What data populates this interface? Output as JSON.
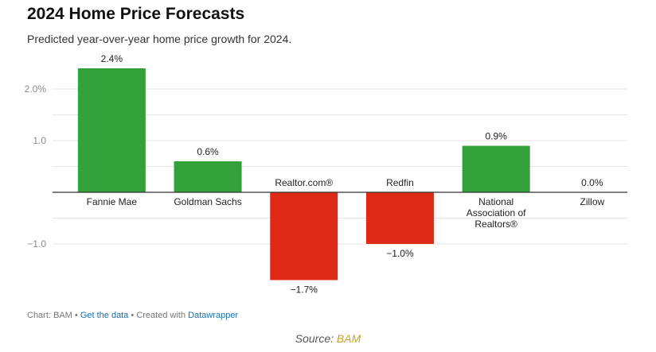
{
  "title": "2024 Home Price Forecasts",
  "subtitle": "Predicted year-over-year home price growth for 2024.",
  "chart_data": {
    "type": "bar",
    "categories": [
      "Fannie Mae",
      "Goldman Sachs",
      "Realtor.com®",
      "Redfin",
      "National Association of Realtors®",
      "Zillow"
    ],
    "values": [
      2.4,
      0.6,
      -1.7,
      -1.0,
      0.9,
      0.0
    ],
    "value_labels": [
      "2.4%",
      "0.6%",
      "−1.7%",
      "−1.0%",
      "0.9%",
      "0.0%"
    ],
    "yticks": [
      2.0,
      1.0,
      -1.0
    ],
    "ytick_labels": [
      "2.0%",
      "1.0",
      "−1.0"
    ],
    "ylim": [
      -2.0,
      2.5
    ],
    "grid": true,
    "colors": {
      "positive": "#32a13a",
      "negative": "#de2a16"
    }
  },
  "footer": {
    "prefix": "Chart: BAM • ",
    "get_data_label": "Get the data",
    "middle": " • Created with ",
    "tool_label": "Datawrapper"
  },
  "source": {
    "prefix": "Source: ",
    "name": "BAM"
  }
}
